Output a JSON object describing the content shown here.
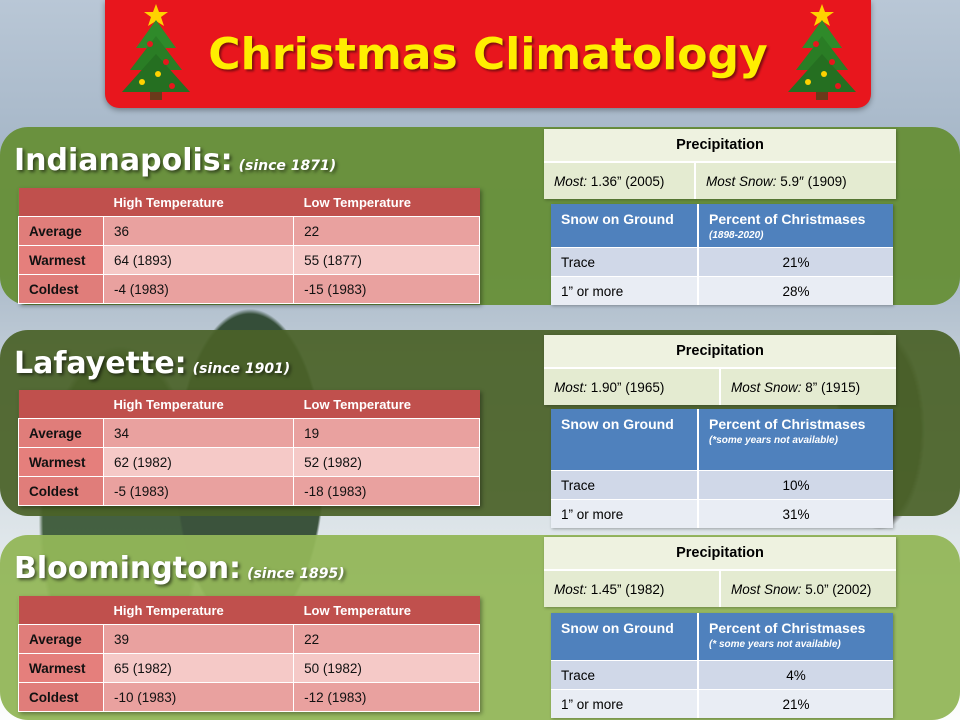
{
  "title": "Christmas Climatology",
  "temp_headers": {
    "high": "High Temperature",
    "low": "Low Temperature"
  },
  "row_labels": {
    "average": "Average",
    "warmest": "Warmest",
    "coldest": "Coldest"
  },
  "precip_header": "Precipitation",
  "most_label": "Most:",
  "most_snow_label": "Most Snow:",
  "snow_headers": {
    "col1": "Snow on Ground",
    "col2": "Percent of Christmases"
  },
  "snow_rows": {
    "trace": "Trace",
    "one_inch": "1” or more"
  },
  "cities": [
    {
      "name": "Indianapolis:",
      "since": "(since 1871)",
      "average": {
        "high": "36",
        "low": "22"
      },
      "warmest": {
        "high": "64 (1893)",
        "low": "55 (1877)"
      },
      "coldest": {
        "high": "-4 (1983)",
        "low": "-15 (1983)"
      },
      "precip_most": "1.36” (2005)",
      "precip_most_snow": "5.9″ (1909)",
      "snow_note": "(1898-2020)",
      "trace_pct": "21%",
      "inch_pct": "28%"
    },
    {
      "name": "Lafayette:",
      "since": "(since 1901)",
      "average": {
        "high": "34",
        "low": "19"
      },
      "warmest": {
        "high": "62 (1982)",
        "low": "52 (1982)"
      },
      "coldest": {
        "high": "-5 (1983)",
        "low": "-18 (1983)"
      },
      "precip_most": "1.90” (1965)",
      "precip_most_snow": "8” (1915)",
      "snow_note": "(*some years not available)",
      "trace_pct": "10%",
      "inch_pct": "31%"
    },
    {
      "name": "Bloomington:",
      "since": "(since 1895)",
      "average": {
        "high": "39",
        "low": "22"
      },
      "warmest": {
        "high": "65 (1982)",
        "low": "50 (1982)"
      },
      "coldest": {
        "high": "-10 (1983)",
        "low": "-12 (1983)"
      },
      "precip_most": "1.45” (1982)",
      "precip_most_snow": "5.0” (2002)",
      "snow_note": "(* some years not available)",
      "trace_pct": "4%",
      "inch_pct": "21%"
    }
  ],
  "colors": {
    "banner": "#e8161d",
    "title_text": "#ffee00",
    "temp_header": "#c0504d",
    "snow_header": "#4f81bd"
  },
  "icons": [
    "christmas-tree-icon"
  ]
}
